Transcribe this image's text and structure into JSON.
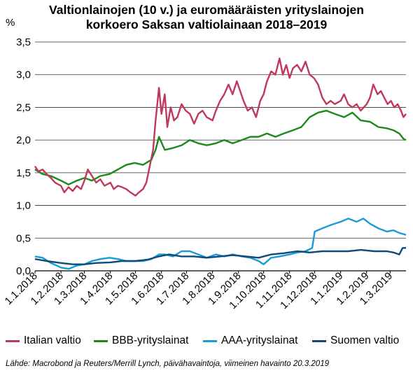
{
  "title_line1": "Valtionlainojen (10 v.) ja euromääräisten yrityslainojen",
  "title_line2": "korkoero Saksan valtiolainaan 2018–2019",
  "source": "Lähde: Macrobond ja Reuters/Merrill Lynch, päivähavaintoja, viimeinen havainto 20.3.2019",
  "chart_data": {
    "type": "line",
    "ylabel": "%",
    "ylim": [
      0,
      3.5
    ],
    "yticks": [
      "0,0",
      "0,5",
      "1,0",
      "1,5",
      "2,0",
      "2,5",
      "3,0",
      "3,5"
    ],
    "xlim": [
      "2018-01-01",
      "2019-03-20"
    ],
    "xticks": [
      "1.1.2018",
      "1.2.2018",
      "1.3.2018",
      "1.4.2018",
      "1.5.2018",
      "1.6.2018",
      "1.7.2018",
      "1.8.2018",
      "1.9.2018",
      "1.10.2018",
      "1.11.2018",
      "1.12.2018",
      "1.1.2019",
      "1.2.2019",
      "1.3.2019"
    ],
    "grid": "horizontal",
    "legend_position": "bottom",
    "series": [
      {
        "name": "Italian valtio",
        "color": "#c0395a",
        "points": [
          [
            "2018-01-01",
            1.6
          ],
          [
            "2018-01-05",
            1.52
          ],
          [
            "2018-01-10",
            1.55
          ],
          [
            "2018-01-15",
            1.48
          ],
          [
            "2018-01-20",
            1.42
          ],
          [
            "2018-01-25",
            1.35
          ],
          [
            "2018-02-01",
            1.3
          ],
          [
            "2018-02-05",
            1.2
          ],
          [
            "2018-02-10",
            1.28
          ],
          [
            "2018-02-15",
            1.22
          ],
          [
            "2018-02-20",
            1.3
          ],
          [
            "2018-02-25",
            1.25
          ],
          [
            "2018-03-01",
            1.38
          ],
          [
            "2018-03-05",
            1.55
          ],
          [
            "2018-03-10",
            1.45
          ],
          [
            "2018-03-15",
            1.35
          ],
          [
            "2018-03-20",
            1.4
          ],
          [
            "2018-03-25",
            1.3
          ],
          [
            "2018-04-01",
            1.35
          ],
          [
            "2018-04-05",
            1.25
          ],
          [
            "2018-04-10",
            1.3
          ],
          [
            "2018-04-15",
            1.28
          ],
          [
            "2018-04-20",
            1.25
          ],
          [
            "2018-04-25",
            1.2
          ],
          [
            "2018-05-01",
            1.15
          ],
          [
            "2018-05-05",
            1.2
          ],
          [
            "2018-05-10",
            1.25
          ],
          [
            "2018-05-14",
            1.35
          ],
          [
            "2018-05-18",
            1.6
          ],
          [
            "2018-05-22",
            1.85
          ],
          [
            "2018-05-25",
            2.3
          ],
          [
            "2018-05-29",
            2.8
          ],
          [
            "2018-06-01",
            2.4
          ],
          [
            "2018-06-05",
            2.7
          ],
          [
            "2018-06-08",
            2.2
          ],
          [
            "2018-06-12",
            2.5
          ],
          [
            "2018-06-16",
            2.3
          ],
          [
            "2018-06-20",
            2.35
          ],
          [
            "2018-06-25",
            2.55
          ],
          [
            "2018-06-30",
            2.45
          ],
          [
            "2018-07-05",
            2.4
          ],
          [
            "2018-07-10",
            2.25
          ],
          [
            "2018-07-15",
            2.4
          ],
          [
            "2018-07-20",
            2.45
          ],
          [
            "2018-07-25",
            2.35
          ],
          [
            "2018-08-01",
            2.3
          ],
          [
            "2018-08-05",
            2.45
          ],
          [
            "2018-08-10",
            2.6
          ],
          [
            "2018-08-15",
            2.7
          ],
          [
            "2018-08-20",
            2.85
          ],
          [
            "2018-08-25",
            2.7
          ],
          [
            "2018-08-30",
            2.9
          ],
          [
            "2018-09-03",
            2.75
          ],
          [
            "2018-09-07",
            2.6
          ],
          [
            "2018-09-12",
            2.45
          ],
          [
            "2018-09-17",
            2.5
          ],
          [
            "2018-09-22",
            2.35
          ],
          [
            "2018-09-27",
            2.6
          ],
          [
            "2018-10-01",
            2.7
          ],
          [
            "2018-10-05",
            2.9
          ],
          [
            "2018-10-10",
            3.05
          ],
          [
            "2018-10-15",
            3.0
          ],
          [
            "2018-10-20",
            3.25
          ],
          [
            "2018-10-24",
            3.0
          ],
          [
            "2018-10-28",
            3.15
          ],
          [
            "2018-11-01",
            2.95
          ],
          [
            "2018-11-05",
            3.1
          ],
          [
            "2018-11-10",
            3.15
          ],
          [
            "2018-11-15",
            3.05
          ],
          [
            "2018-11-20",
            3.2
          ],
          [
            "2018-11-25",
            3.0
          ],
          [
            "2018-11-30",
            2.95
          ],
          [
            "2018-12-05",
            2.85
          ],
          [
            "2018-12-10",
            2.65
          ],
          [
            "2018-12-15",
            2.55
          ],
          [
            "2018-12-20",
            2.6
          ],
          [
            "2018-12-25",
            2.55
          ],
          [
            "2019-01-01",
            2.6
          ],
          [
            "2019-01-05",
            2.7
          ],
          [
            "2019-01-10",
            2.55
          ],
          [
            "2019-01-15",
            2.5
          ],
          [
            "2019-01-20",
            2.55
          ],
          [
            "2019-01-25",
            2.45
          ],
          [
            "2019-02-01",
            2.55
          ],
          [
            "2019-02-05",
            2.65
          ],
          [
            "2019-02-09",
            2.85
          ],
          [
            "2019-02-14",
            2.7
          ],
          [
            "2019-02-18",
            2.75
          ],
          [
            "2019-02-22",
            2.65
          ],
          [
            "2019-02-26",
            2.55
          ],
          [
            "2019-03-02",
            2.6
          ],
          [
            "2019-03-06",
            2.5
          ],
          [
            "2019-03-10",
            2.55
          ],
          [
            "2019-03-14",
            2.45
          ],
          [
            "2019-03-17",
            2.35
          ],
          [
            "2019-03-20",
            2.4
          ]
        ]
      },
      {
        "name": "BBB-yrityslainat",
        "color": "#1a8a1a",
        "points": [
          [
            "2018-01-01",
            1.55
          ],
          [
            "2018-01-10",
            1.48
          ],
          [
            "2018-01-20",
            1.45
          ],
          [
            "2018-02-01",
            1.38
          ],
          [
            "2018-02-10",
            1.32
          ],
          [
            "2018-02-20",
            1.38
          ],
          [
            "2018-03-01",
            1.42
          ],
          [
            "2018-03-10",
            1.38
          ],
          [
            "2018-03-20",
            1.45
          ],
          [
            "2018-03-31",
            1.48
          ],
          [
            "2018-04-10",
            1.55
          ],
          [
            "2018-04-20",
            1.62
          ],
          [
            "2018-04-30",
            1.65
          ],
          [
            "2018-05-10",
            1.62
          ],
          [
            "2018-05-20",
            1.7
          ],
          [
            "2018-05-25",
            1.85
          ],
          [
            "2018-05-29",
            2.05
          ],
          [
            "2018-06-05",
            1.85
          ],
          [
            "2018-06-15",
            1.88
          ],
          [
            "2018-06-25",
            1.92
          ],
          [
            "2018-07-05",
            2.0
          ],
          [
            "2018-07-15",
            1.95
          ],
          [
            "2018-07-25",
            1.92
          ],
          [
            "2018-08-05",
            1.95
          ],
          [
            "2018-08-15",
            2.0
          ],
          [
            "2018-08-25",
            1.95
          ],
          [
            "2018-09-05",
            2.0
          ],
          [
            "2018-09-15",
            2.05
          ],
          [
            "2018-09-25",
            2.05
          ],
          [
            "2018-10-05",
            2.1
          ],
          [
            "2018-10-15",
            2.05
          ],
          [
            "2018-10-25",
            2.1
          ],
          [
            "2018-11-05",
            2.15
          ],
          [
            "2018-11-15",
            2.2
          ],
          [
            "2018-11-25",
            2.35
          ],
          [
            "2018-12-05",
            2.42
          ],
          [
            "2018-12-15",
            2.45
          ],
          [
            "2018-12-25",
            2.4
          ],
          [
            "2019-01-05",
            2.35
          ],
          [
            "2019-01-15",
            2.42
          ],
          [
            "2019-01-25",
            2.3
          ],
          [
            "2019-02-05",
            2.28
          ],
          [
            "2019-02-15",
            2.2
          ],
          [
            "2019-02-25",
            2.18
          ],
          [
            "2019-03-05",
            2.15
          ],
          [
            "2019-03-12",
            2.1
          ],
          [
            "2019-03-17",
            2.02
          ],
          [
            "2019-03-20",
            2.0
          ]
        ]
      },
      {
        "name": "AAA-yrityslainat",
        "color": "#1a9ad6",
        "points": [
          [
            "2018-01-01",
            0.22
          ],
          [
            "2018-01-10",
            0.2
          ],
          [
            "2018-01-20",
            0.12
          ],
          [
            "2018-02-01",
            0.05
          ],
          [
            "2018-02-10",
            0.03
          ],
          [
            "2018-02-20",
            0.08
          ],
          [
            "2018-03-01",
            0.1
          ],
          [
            "2018-03-10",
            0.15
          ],
          [
            "2018-03-20",
            0.18
          ],
          [
            "2018-03-31",
            0.2
          ],
          [
            "2018-04-10",
            0.18
          ],
          [
            "2018-04-20",
            0.15
          ],
          [
            "2018-04-30",
            0.15
          ],
          [
            "2018-05-10",
            0.15
          ],
          [
            "2018-05-20",
            0.18
          ],
          [
            "2018-05-29",
            0.25
          ],
          [
            "2018-06-05",
            0.25
          ],
          [
            "2018-06-15",
            0.22
          ],
          [
            "2018-06-25",
            0.3
          ],
          [
            "2018-07-05",
            0.3
          ],
          [
            "2018-07-15",
            0.25
          ],
          [
            "2018-07-25",
            0.2
          ],
          [
            "2018-08-05",
            0.25
          ],
          [
            "2018-08-15",
            0.22
          ],
          [
            "2018-08-25",
            0.25
          ],
          [
            "2018-09-05",
            0.22
          ],
          [
            "2018-09-15",
            0.2
          ],
          [
            "2018-09-25",
            0.15
          ],
          [
            "2018-10-01",
            0.1
          ],
          [
            "2018-10-10",
            0.2
          ],
          [
            "2018-10-20",
            0.22
          ],
          [
            "2018-11-01",
            0.25
          ],
          [
            "2018-11-10",
            0.28
          ],
          [
            "2018-11-20",
            0.3
          ],
          [
            "2018-11-28",
            0.35
          ],
          [
            "2018-12-01",
            0.6
          ],
          [
            "2018-12-10",
            0.65
          ],
          [
            "2018-12-20",
            0.7
          ],
          [
            "2019-01-01",
            0.75
          ],
          [
            "2019-01-10",
            0.8
          ],
          [
            "2019-01-20",
            0.75
          ],
          [
            "2019-01-28",
            0.8
          ],
          [
            "2019-02-05",
            0.72
          ],
          [
            "2019-02-15",
            0.65
          ],
          [
            "2019-02-25",
            0.6
          ],
          [
            "2019-03-05",
            0.62
          ],
          [
            "2019-03-12",
            0.58
          ],
          [
            "2019-03-20",
            0.55
          ]
        ]
      },
      {
        "name": "Suomen valtio",
        "color": "#0f4a7a",
        "points": [
          [
            "2018-01-01",
            0.18
          ],
          [
            "2018-01-15",
            0.15
          ],
          [
            "2018-02-01",
            0.12
          ],
          [
            "2018-02-15",
            0.1
          ],
          [
            "2018-03-01",
            0.1
          ],
          [
            "2018-03-15",
            0.12
          ],
          [
            "2018-04-01",
            0.13
          ],
          [
            "2018-04-15",
            0.15
          ],
          [
            "2018-05-01",
            0.15
          ],
          [
            "2018-05-15",
            0.17
          ],
          [
            "2018-05-29",
            0.22
          ],
          [
            "2018-06-10",
            0.25
          ],
          [
            "2018-06-25",
            0.22
          ],
          [
            "2018-07-10",
            0.22
          ],
          [
            "2018-07-25",
            0.2
          ],
          [
            "2018-08-10",
            0.22
          ],
          [
            "2018-08-25",
            0.24
          ],
          [
            "2018-09-10",
            0.22
          ],
          [
            "2018-09-25",
            0.2
          ],
          [
            "2018-10-10",
            0.25
          ],
          [
            "2018-10-25",
            0.27
          ],
          [
            "2018-11-10",
            0.3
          ],
          [
            "2018-11-25",
            0.28
          ],
          [
            "2018-12-10",
            0.3
          ],
          [
            "2018-12-25",
            0.3
          ],
          [
            "2019-01-10",
            0.3
          ],
          [
            "2019-01-25",
            0.32
          ],
          [
            "2019-02-10",
            0.3
          ],
          [
            "2019-02-25",
            0.3
          ],
          [
            "2019-03-05",
            0.28
          ],
          [
            "2019-03-12",
            0.25
          ],
          [
            "2019-03-16",
            0.35
          ],
          [
            "2019-03-20",
            0.35
          ]
        ]
      }
    ]
  }
}
